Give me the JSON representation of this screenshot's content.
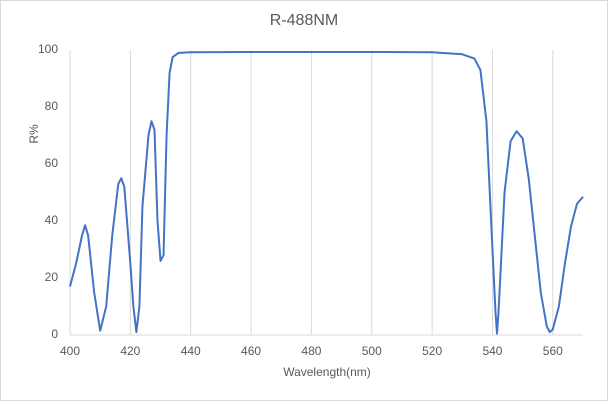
{
  "chart_data": {
    "type": "line",
    "title": "R-488NM",
    "x_label": "Wavelength(nm)",
    "y_label": "R%",
    "x": [
      400,
      402,
      404,
      405,
      406,
      408,
      410,
      412,
      414,
      416,
      417,
      418,
      420,
      421,
      422,
      423,
      424,
      426,
      427,
      428,
      429,
      430,
      431,
      432,
      433,
      434,
      436,
      440,
      460,
      480,
      500,
      520,
      530,
      534,
      536,
      538,
      540,
      541,
      541.5,
      542,
      544,
      546,
      548,
      550,
      552,
      554,
      556,
      558,
      559,
      560,
      562,
      564,
      566,
      568,
      570
    ],
    "series": [
      {
        "name": "R%",
        "color": "#4472c4",
        "values": [
          17,
          25,
          35,
          38.5,
          35,
          15,
          1.5,
          10,
          35,
          53,
          55,
          52,
          25,
          10,
          1,
          10,
          45,
          70,
          75,
          72,
          40,
          26,
          28,
          70,
          92,
          97.5,
          99,
          99.2,
          99.3,
          99.3,
          99.3,
          99.2,
          98.5,
          97,
          93,
          75,
          30,
          8,
          0.5,
          8,
          50,
          68,
          71.5,
          69,
          55,
          35,
          15,
          3,
          1,
          2,
          10,
          25,
          38,
          46,
          48.5
        ]
      }
    ],
    "xlim": [
      400,
      570
    ],
    "xticks": [
      400,
      420,
      440,
      460,
      480,
      500,
      520,
      540,
      560
    ],
    "ylim": [
      0,
      100
    ],
    "yticks": [
      0,
      20,
      40,
      60,
      80,
      100
    ],
    "grid": "x"
  }
}
